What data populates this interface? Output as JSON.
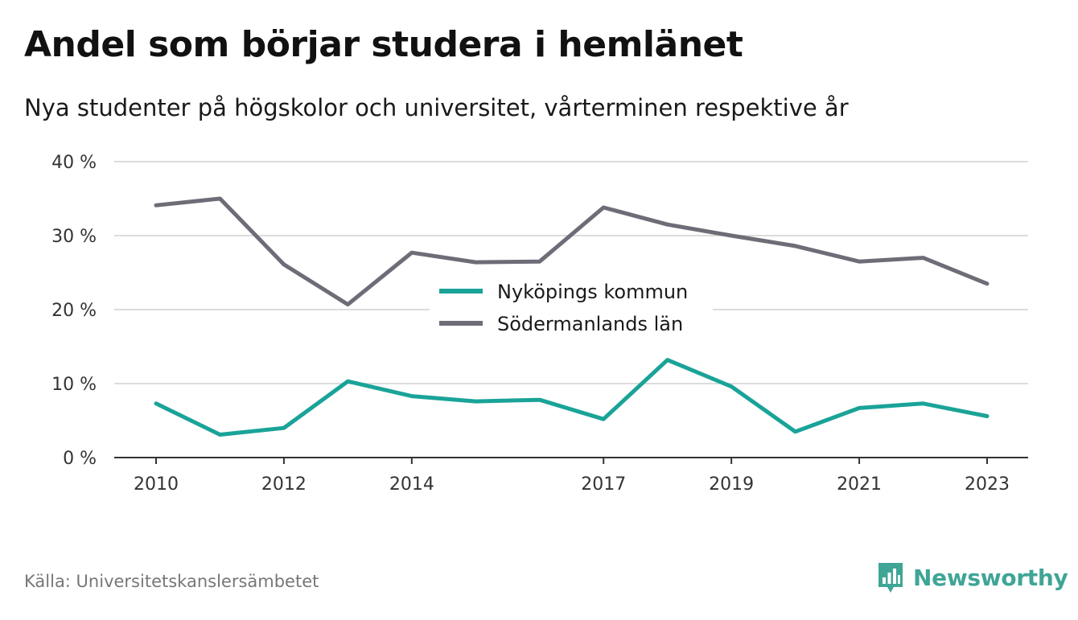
{
  "header": {
    "title": "Andel som börjar studera i hemlänet",
    "subtitle": "Nya studenter på högskolor och universitet, vårterminen respektive år"
  },
  "footer": {
    "source": "Källa: Universitetskanslersämbetet",
    "brand": "Newsworthy",
    "brand_icon": "bar-chart-speech-bubble-icon",
    "brand_color": "#3fa596"
  },
  "chart_data": {
    "type": "line",
    "x": [
      2010,
      2011,
      2012,
      2013,
      2014,
      2015,
      2016,
      2017,
      2018,
      2019,
      2020,
      2021,
      2022,
      2023
    ],
    "x_tick_labels": [
      "2010",
      "2012",
      "2014",
      "2017",
      "2019",
      "2021",
      "2023"
    ],
    "y_ticks": [
      0,
      10,
      20,
      30,
      40
    ],
    "y_tick_labels": [
      "0 %",
      "10 %",
      "20 %",
      "30 %",
      "40 %"
    ],
    "ylim": [
      0,
      40
    ],
    "grid": "horizontal",
    "legend_position": "center",
    "series": [
      {
        "name": "Nyköpings kommun",
        "color": "#1aa398",
        "values": [
          7.3,
          3.1,
          4.0,
          10.3,
          8.3,
          7.6,
          7.8,
          5.2,
          13.2,
          9.6,
          3.5,
          6.7,
          7.3,
          5.6
        ]
      },
      {
        "name": "Södermanlands län",
        "color": "#6d6c77",
        "values": [
          34.1,
          35.0,
          26.1,
          20.7,
          27.7,
          26.4,
          26.5,
          33.8,
          31.5,
          30.0,
          28.6,
          26.5,
          27.0,
          23.5
        ]
      }
    ]
  }
}
